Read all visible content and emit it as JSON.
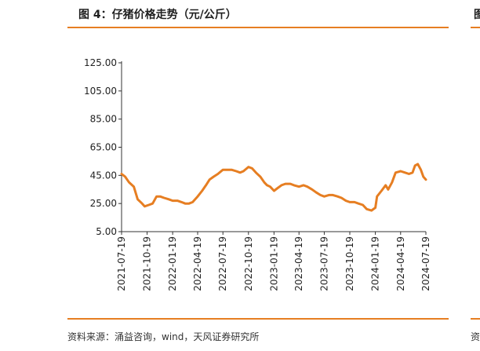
{
  "figure": {
    "title": "图 4：仔猪价格走势（元/公斤）",
    "source": "资料来源：涌益咨询，wind，天风证券研究所",
    "right_edge_title_glyph": "图",
    "right_edge_source_glyph": "资"
  },
  "chart_data": {
    "type": "line",
    "title": "",
    "xlabel": "",
    "ylabel": "",
    "ylim": [
      5,
      125
    ],
    "yticks": [
      "5.00",
      "25.00",
      "45.00",
      "65.00",
      "85.00",
      "105.00",
      "125.00"
    ],
    "xticks": [
      "2021-07-19",
      "2021-10-19",
      "2022-01-19",
      "2022-04-19",
      "2022-07-19",
      "2022-10-19",
      "2023-01-19",
      "2023-04-19",
      "2023-07-19",
      "2023-10-19",
      "2024-01-19",
      "2024-04-19",
      "2024-07-19"
    ],
    "grid": false,
    "legend": "none",
    "color": "#e67e22",
    "series": [
      {
        "name": "",
        "points": [
          [
            "2021-07-19",
            46
          ],
          [
            "2021-08-01",
            44
          ],
          [
            "2021-08-15",
            40
          ],
          [
            "2021-09-01",
            37
          ],
          [
            "2021-09-15",
            28
          ],
          [
            "2021-10-01",
            25
          ],
          [
            "2021-10-10",
            23
          ],
          [
            "2021-10-25",
            24
          ],
          [
            "2021-11-08",
            25
          ],
          [
            "2021-11-22",
            30
          ],
          [
            "2021-12-05",
            30
          ],
          [
            "2021-12-19",
            29
          ],
          [
            "2022-01-05",
            28
          ],
          [
            "2022-01-19",
            27
          ],
          [
            "2022-02-05",
            27
          ],
          [
            "2022-02-20",
            26
          ],
          [
            "2022-03-05",
            25
          ],
          [
            "2022-03-19",
            25
          ],
          [
            "2022-04-01",
            26
          ],
          [
            "2022-04-19",
            30
          ],
          [
            "2022-05-05",
            34
          ],
          [
            "2022-05-19",
            38
          ],
          [
            "2022-06-01",
            42
          ],
          [
            "2022-06-15",
            44
          ],
          [
            "2022-07-01",
            46
          ],
          [
            "2022-07-19",
            49
          ],
          [
            "2022-08-05",
            49
          ],
          [
            "2022-08-19",
            49
          ],
          [
            "2022-09-05",
            48
          ],
          [
            "2022-09-19",
            47
          ],
          [
            "2022-10-01",
            48
          ],
          [
            "2022-10-19",
            51
          ],
          [
            "2022-11-01",
            50
          ],
          [
            "2022-11-15",
            47
          ],
          [
            "2022-12-01",
            44
          ],
          [
            "2022-12-15",
            40
          ],
          [
            "2022-12-25",
            38
          ],
          [
            "2023-01-05",
            37
          ],
          [
            "2023-01-19",
            34
          ],
          [
            "2023-02-01",
            36
          ],
          [
            "2023-02-15",
            38
          ],
          [
            "2023-03-01",
            39
          ],
          [
            "2023-03-19",
            39
          ],
          [
            "2023-04-01",
            38
          ],
          [
            "2023-04-19",
            37
          ],
          [
            "2023-05-05",
            38
          ],
          [
            "2023-05-19",
            37
          ],
          [
            "2023-06-05",
            35
          ],
          [
            "2023-06-19",
            33
          ],
          [
            "2023-07-05",
            31
          ],
          [
            "2023-07-19",
            30
          ],
          [
            "2023-08-05",
            31
          ],
          [
            "2023-08-19",
            31
          ],
          [
            "2023-09-05",
            30
          ],
          [
            "2023-09-19",
            29
          ],
          [
            "2023-10-05",
            27
          ],
          [
            "2023-10-19",
            26
          ],
          [
            "2023-11-05",
            26
          ],
          [
            "2023-11-19",
            25
          ],
          [
            "2023-12-05",
            24
          ],
          [
            "2023-12-19",
            21
          ],
          [
            "2024-01-05",
            20
          ],
          [
            "2024-01-19",
            22
          ],
          [
            "2024-01-25",
            30
          ],
          [
            "2024-02-10",
            34
          ],
          [
            "2024-02-25",
            38
          ],
          [
            "2024-03-05",
            35
          ],
          [
            "2024-03-19",
            40
          ],
          [
            "2024-04-01",
            47
          ],
          [
            "2024-04-19",
            48
          ],
          [
            "2024-05-05",
            47
          ],
          [
            "2024-05-19",
            46
          ],
          [
            "2024-06-01",
            47
          ],
          [
            "2024-06-10",
            52
          ],
          [
            "2024-06-20",
            53
          ],
          [
            "2024-07-01",
            49
          ],
          [
            "2024-07-10",
            44
          ],
          [
            "2024-07-19",
            42
          ]
        ]
      }
    ]
  }
}
